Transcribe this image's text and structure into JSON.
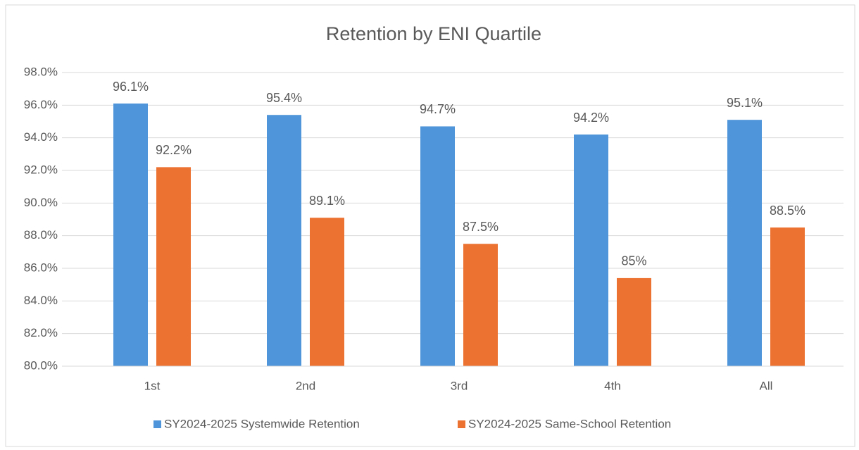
{
  "chart_data": {
    "type": "bar",
    "title": "Retention by ENI Quartile",
    "categories": [
      "1st",
      "2nd",
      "3rd",
      "4th",
      "All"
    ],
    "series": [
      {
        "name": "SY2024-2025 Systemwide Retention",
        "color": "#4e95d9",
        "values": [
          96.1,
          95.4,
          94.7,
          94.2,
          95.1
        ],
        "value_labels": [
          "96.1%",
          "95.4%",
          "94.7%",
          "94.2%",
          "95.1%"
        ]
      },
      {
        "name": "SY2024-2025 Same-School Retention",
        "color": "#ec7232",
        "values": [
          92.2,
          89.1,
          87.5,
          85.4,
          88.5
        ],
        "value_labels": [
          "92.2%",
          "89.1%",
          "87.5%",
          "85%",
          "88.5%"
        ]
      }
    ],
    "ylim": [
      80,
      98
    ],
    "yticks": [
      {
        "value": 80,
        "label": "80.0%"
      },
      {
        "value": 82,
        "label": "82.0%"
      },
      {
        "value": 84,
        "label": "84.0%"
      },
      {
        "value": 86,
        "label": "86.0%"
      },
      {
        "value": 88,
        "label": "88.0%"
      },
      {
        "value": 90,
        "label": "90.0%"
      },
      {
        "value": 92,
        "label": "92.0%"
      },
      {
        "value": 94,
        "label": "94.0%"
      },
      {
        "value": 96,
        "label": "96.0%"
      },
      {
        "value": 98,
        "label": "98.0%"
      }
    ],
    "grid": true,
    "legend": "bottom"
  }
}
